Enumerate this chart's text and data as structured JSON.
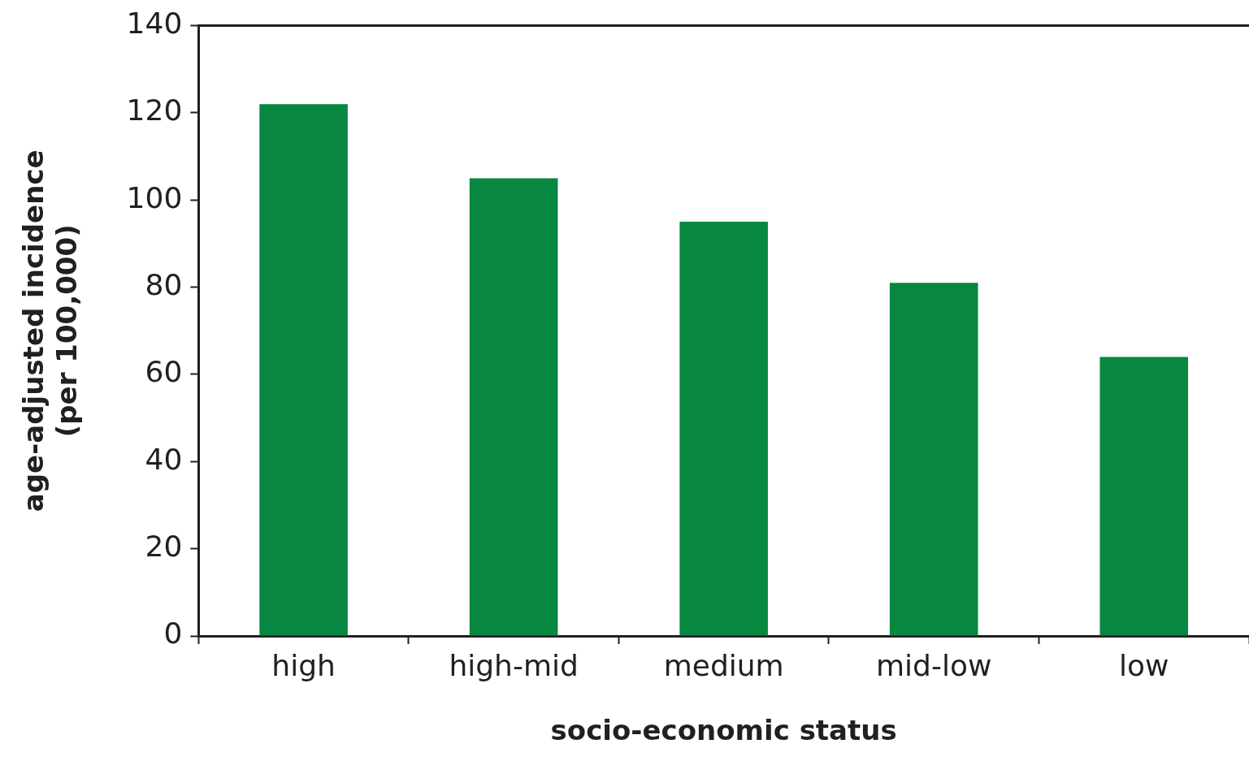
{
  "chart_data": {
    "type": "bar",
    "xlabel": "socio-economic status",
    "ylabel": "age-adjusted incidence\n(per 100,000)",
    "categories": [
      "high",
      "high-mid",
      "medium",
      "mid-low",
      "low"
    ],
    "values": [
      122,
      105,
      95,
      81,
      64
    ],
    "color": "#07873f",
    "ylim": [
      0,
      140
    ],
    "yticks": [
      0,
      20,
      40,
      60,
      80,
      100,
      120,
      140
    ],
    "grid": false,
    "legend": false
  }
}
